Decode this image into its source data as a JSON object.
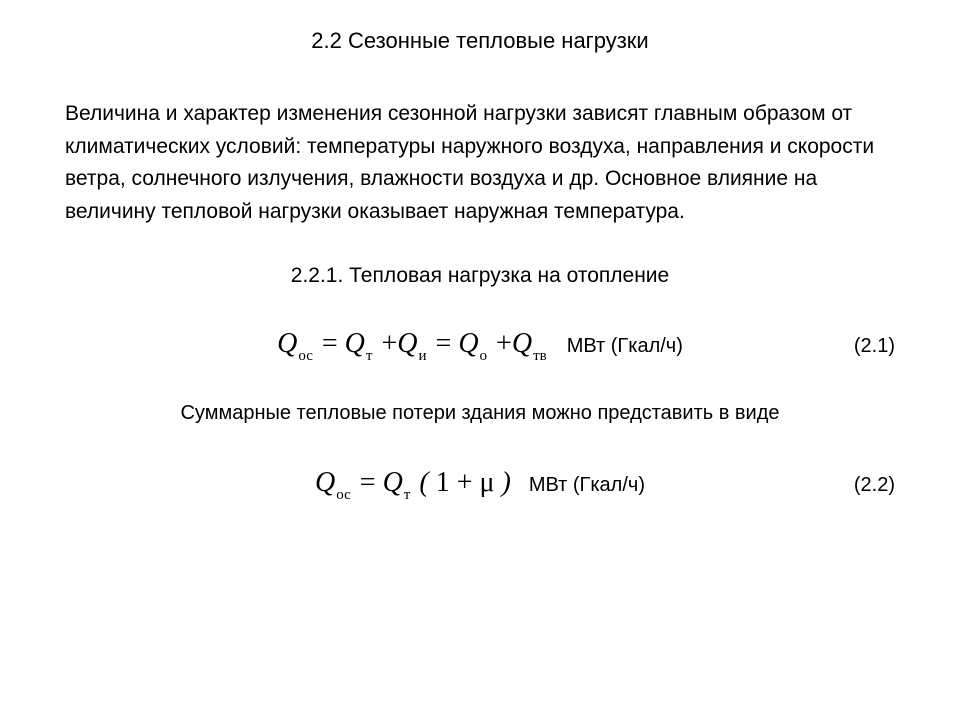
{
  "heading": "2.2 Сезонные тепловые нагрузки",
  "paragraph": "Величина и характер изменения сезонной нагрузки зависят главным образом от климатических условий: температуры наружного воздуха, направления и скорости ветра, солнечного излучения, влажности воздуха и др. Основное влияние на величину тепловой нагрузки оказывает наружная температура.",
  "subheading": "2.2.1. Тепловая нагрузка на отопление",
  "eq1": {
    "Q": "Q",
    "sub_oc": "ос",
    "eq": " = ",
    "sub_t": "т",
    "plus": " +",
    "sub_i": "и",
    "sub_o": "о",
    "sub_tv": "тв",
    "unit": "МВт (Гкал/ч)",
    "num": "(2.1)"
  },
  "note": "Суммарные тепловые потери здания можно представить в виде",
  "eq2": {
    "Q": "Q",
    "sub_oc": "ос",
    "eq": " = ",
    "sub_t": "т",
    "lp": " (",
    "one": " 1 ",
    "plus_mu": "  +  μ   ",
    "rp": ")",
    "unit": "МВт (Гкал/ч)",
    "num": "(2.2)"
  },
  "colors": {
    "text": "#000000",
    "background": "#ffffff"
  },
  "fonts": {
    "body": "Arial",
    "math": "Times New Roman"
  }
}
